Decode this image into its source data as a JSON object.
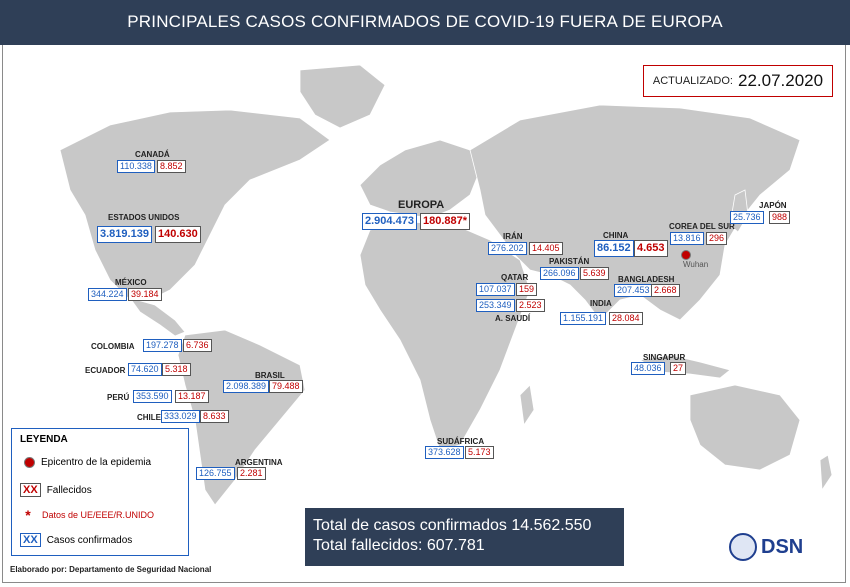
{
  "title": "PRINCIPALES CASOS CONFIRMADOS DE COVID-19 FUERA DE EUROPA",
  "updated": {
    "label": "ACTUALIZADO:",
    "date": "22.07.2020"
  },
  "countries": {
    "canada": {
      "name": "CANADÁ",
      "confirmed": "110.338",
      "deaths": "8.852"
    },
    "usa": {
      "name": "ESTADOS UNIDOS",
      "confirmed": "3.819.139",
      "deaths": "140.630"
    },
    "mexico": {
      "name": "MÉXICO",
      "confirmed": "344.224",
      "deaths": "39.184"
    },
    "colombia": {
      "name": "COLOMBIA",
      "confirmed": "197.278",
      "deaths": "6.736"
    },
    "ecuador": {
      "name": "ECUADOR",
      "confirmed": "74.620",
      "deaths": "5.318"
    },
    "peru": {
      "name": "PERÚ",
      "confirmed": "353.590",
      "deaths": "13.187"
    },
    "chile": {
      "name": "CHILE",
      "confirmed": "333.029",
      "deaths": "8.633"
    },
    "brasil": {
      "name": "BRASIL",
      "confirmed": "2.098.389",
      "deaths": "79.488"
    },
    "argentina": {
      "name": "ARGENTINA",
      "confirmed": "126.755",
      "deaths": "2.281"
    },
    "europa": {
      "name": "EUROPA",
      "confirmed": "2.904.473",
      "deaths": "180.887*"
    },
    "iran": {
      "name": "IRÁN",
      "confirmed": "276.202",
      "deaths": "14.405"
    },
    "qatar": {
      "name": "QATAR",
      "confirmed": "107.037",
      "deaths": "159"
    },
    "saudi": {
      "name": "A. SAUDÍ",
      "confirmed": "253.349",
      "deaths": "2.523"
    },
    "pakistan": {
      "name": "PAKISTÁN",
      "confirmed": "266.096",
      "deaths": "5.639"
    },
    "india": {
      "name": "INDIA",
      "confirmed": "1.155.191",
      "deaths": "28.084"
    },
    "bangladesh": {
      "name": "BANGLADESH",
      "confirmed": "207.453",
      "deaths": "2.668"
    },
    "china": {
      "name": "CHINA",
      "confirmed": "86.152",
      "deaths": "4.653"
    },
    "korea": {
      "name": "COREA DEL SUR",
      "confirmed": "13.816",
      "deaths": "296"
    },
    "japan": {
      "name": "JAPÓN",
      "confirmed": "25.736",
      "deaths": "988"
    },
    "singapore": {
      "name": "SINGAPUR",
      "confirmed": "48.036",
      "deaths": "27"
    },
    "southafrica": {
      "name": "SUDÁFRICA",
      "confirmed": "373.628",
      "deaths": "5.173"
    }
  },
  "epicenter_label": "Wuhan",
  "legend": {
    "title": "LEYENDA",
    "epicenter": "Epicentro de la epidemia",
    "deaths_symbol": "XX",
    "deaths": "Fallecidos",
    "asterisk": "*",
    "eu_data": "Datos de UE/EEE/R.UNIDO",
    "confirmed_symbol": "XX",
    "confirmed": "Casos confirmados"
  },
  "totals": {
    "confirmed": "Total de casos confirmados 14.562.550",
    "deaths": "Total fallecidos: 607.781"
  },
  "credit": "Elaborado por: Departamento de Seguridad Nacional",
  "logo": "DSN",
  "colors": {
    "header": "#2f3f57",
    "confirmed": "#1f5fbf",
    "deaths": "#c00000",
    "land": "#c8c8c8"
  }
}
